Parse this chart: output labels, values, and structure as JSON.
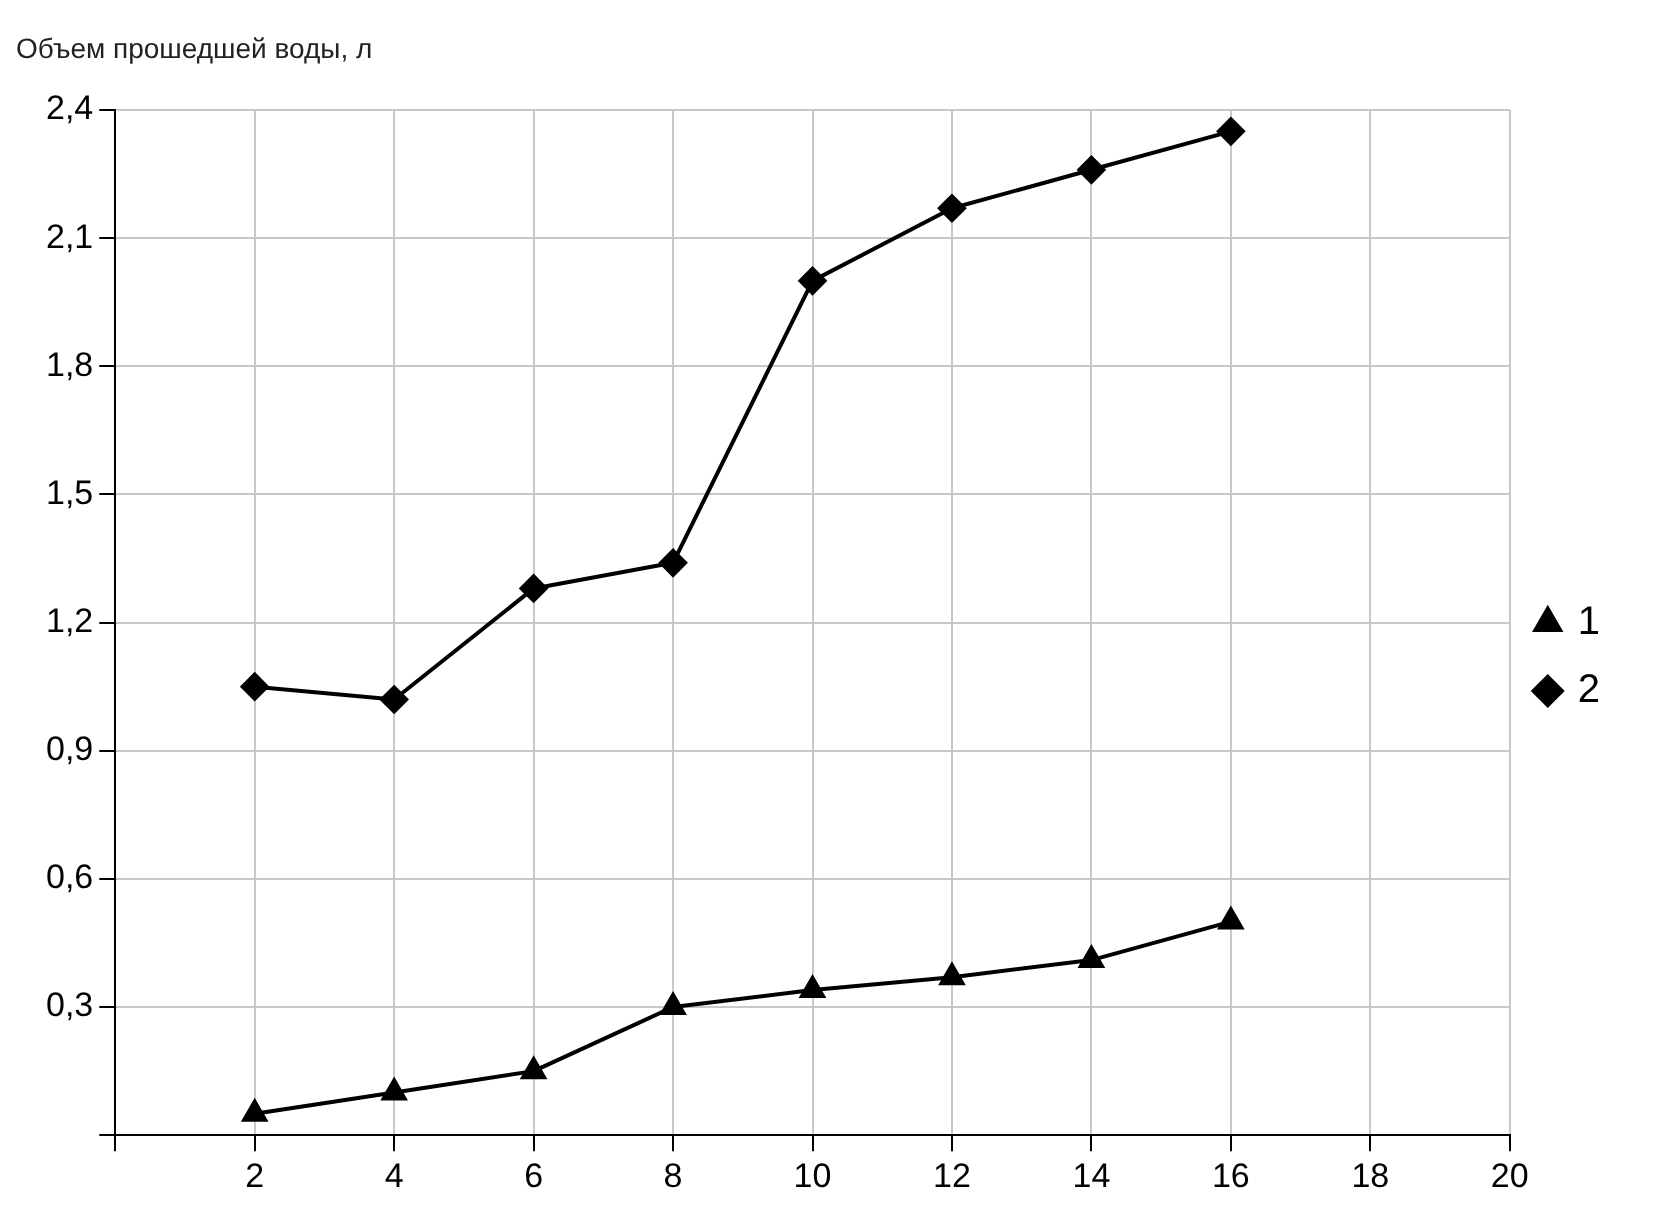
{
  "chart_data": {
    "type": "line",
    "ylabel": "Объем прошедшей воды, л",
    "x": [
      2,
      4,
      6,
      8,
      10,
      12,
      14,
      16
    ],
    "series": [
      {
        "name": "1",
        "color": "#000000",
        "marker": "triangle",
        "values": [
          0.05,
          0.1,
          0.15,
          0.3,
          0.34,
          0.37,
          0.41,
          0.5
        ]
      },
      {
        "name": "2",
        "color": "#000000",
        "marker": "diamond",
        "values": [
          1.05,
          1.02,
          1.28,
          1.34,
          2.0,
          2.17,
          2.26,
          2.35
        ]
      }
    ],
    "xlim": [
      0,
      20
    ],
    "xticks": [
      {
        "value": 0,
        "label": null
      },
      2,
      4,
      6,
      8,
      10,
      12,
      14,
      16,
      18,
      20
    ],
    "ylim": [
      0,
      2.4
    ],
    "yticks": [
      {
        "value": 0,
        "label": null
      },
      {
        "value": 0.3,
        "label": "0,3"
      },
      {
        "value": 0.6,
        "label": "0,6"
      },
      {
        "value": 0.9,
        "label": "0,9"
      },
      {
        "value": 1.2,
        "label": "1,2"
      },
      {
        "value": 1.5,
        "label": "1,5"
      },
      {
        "value": 1.8,
        "label": "1,8"
      },
      {
        "value": 2.1,
        "label": "2,1"
      },
      {
        "value": 2.4,
        "label": "2,4"
      }
    ],
    "grid": true,
    "legend": "right",
    "line_style": "solid"
  }
}
